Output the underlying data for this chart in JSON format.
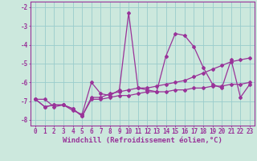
{
  "xlabel": "Windchill (Refroidissement éolien,°C)",
  "background_color": "#cce8dd",
  "line_color": "#993399",
  "grid_color": "#99cccc",
  "x": [
    0,
    1,
    2,
    3,
    4,
    5,
    6,
    7,
    8,
    9,
    10,
    11,
    12,
    13,
    14,
    15,
    16,
    17,
    18,
    19,
    20,
    21,
    22,
    23
  ],
  "line1": [
    -6.9,
    -6.9,
    -7.3,
    -7.2,
    -7.5,
    -7.7,
    -6.0,
    -6.6,
    -6.7,
    -6.4,
    -2.3,
    -6.3,
    -6.4,
    -6.5,
    -4.6,
    -3.4,
    -3.5,
    -4.1,
    -5.2,
    -6.1,
    -6.3,
    -4.8,
    -6.8,
    -6.1
  ],
  "line2": [
    -6.9,
    -7.3,
    -7.2,
    -7.2,
    -7.4,
    -7.8,
    -6.8,
    -6.8,
    -6.6,
    -6.5,
    -6.4,
    -6.3,
    -6.3,
    -6.2,
    -6.1,
    -6.0,
    -5.9,
    -5.7,
    -5.5,
    -5.3,
    -5.1,
    -4.9,
    -4.8,
    -4.7
  ],
  "line3": [
    -6.9,
    -7.3,
    -7.2,
    -7.2,
    -7.4,
    -7.8,
    -6.9,
    -6.9,
    -6.8,
    -6.7,
    -6.7,
    -6.6,
    -6.5,
    -6.5,
    -6.5,
    -6.4,
    -6.4,
    -6.3,
    -6.3,
    -6.2,
    -6.2,
    -6.1,
    -6.1,
    -6.0
  ],
  "ylim": [
    -8.3,
    -1.7
  ],
  "xlim": [
    -0.5,
    23.5
  ],
  "yticks": [
    -8,
    -7,
    -6,
    -5,
    -4,
    -3,
    -2
  ],
  "xticks": [
    0,
    1,
    2,
    3,
    4,
    5,
    6,
    7,
    8,
    9,
    10,
    11,
    12,
    13,
    14,
    15,
    16,
    17,
    18,
    19,
    20,
    21,
    22,
    23
  ],
  "tick_fontsize": 5.5,
  "xlabel_fontsize": 6.5
}
